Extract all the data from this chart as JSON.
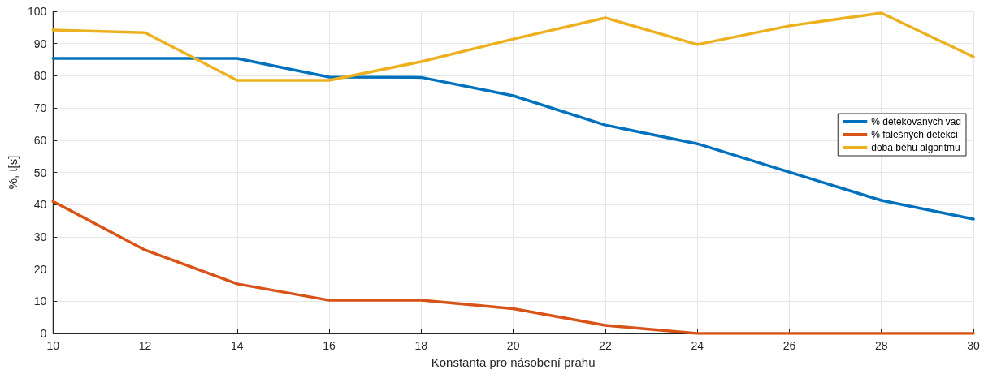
{
  "chart_data": {
    "type": "line",
    "xlabel": "Konstanta pro násobení prahu",
    "ylabel": "%, t[s]",
    "x": [
      10,
      12,
      14,
      16,
      18,
      20,
      22,
      24,
      26,
      28,
      30
    ],
    "xlim": [
      10,
      30
    ],
    "xticks": [
      10,
      12,
      14,
      16,
      18,
      20,
      22,
      24,
      26,
      28,
      30
    ],
    "ylim": [
      0,
      100
    ],
    "yticks": [
      0,
      10,
      20,
      30,
      40,
      50,
      60,
      70,
      80,
      90,
      100
    ],
    "grid": true,
    "legend": "right",
    "marker": "none",
    "line_style": "solid",
    "series": [
      {
        "name": "% detekovaných vad",
        "color": "#0072bd",
        "values": [
          85.4,
          85.4,
          85.4,
          79.6,
          79.5,
          73.8,
          64.7,
          58.9,
          50.1,
          41.3,
          35.5
        ]
      },
      {
        "name": "% falešných detekcí",
        "color": "#d95319",
        "values": [
          41,
          25.9,
          15.4,
          10.3,
          10.3,
          7.7,
          2.5,
          0,
          0,
          0,
          0
        ]
      },
      {
        "name": "doba běhu algoritmu",
        "color": "#edb120",
        "values": [
          94.2,
          93.4,
          78.6,
          78.6,
          84.4,
          91.4,
          98,
          89.7,
          95.5,
          99.5,
          85.9
        ]
      }
    ]
  }
}
